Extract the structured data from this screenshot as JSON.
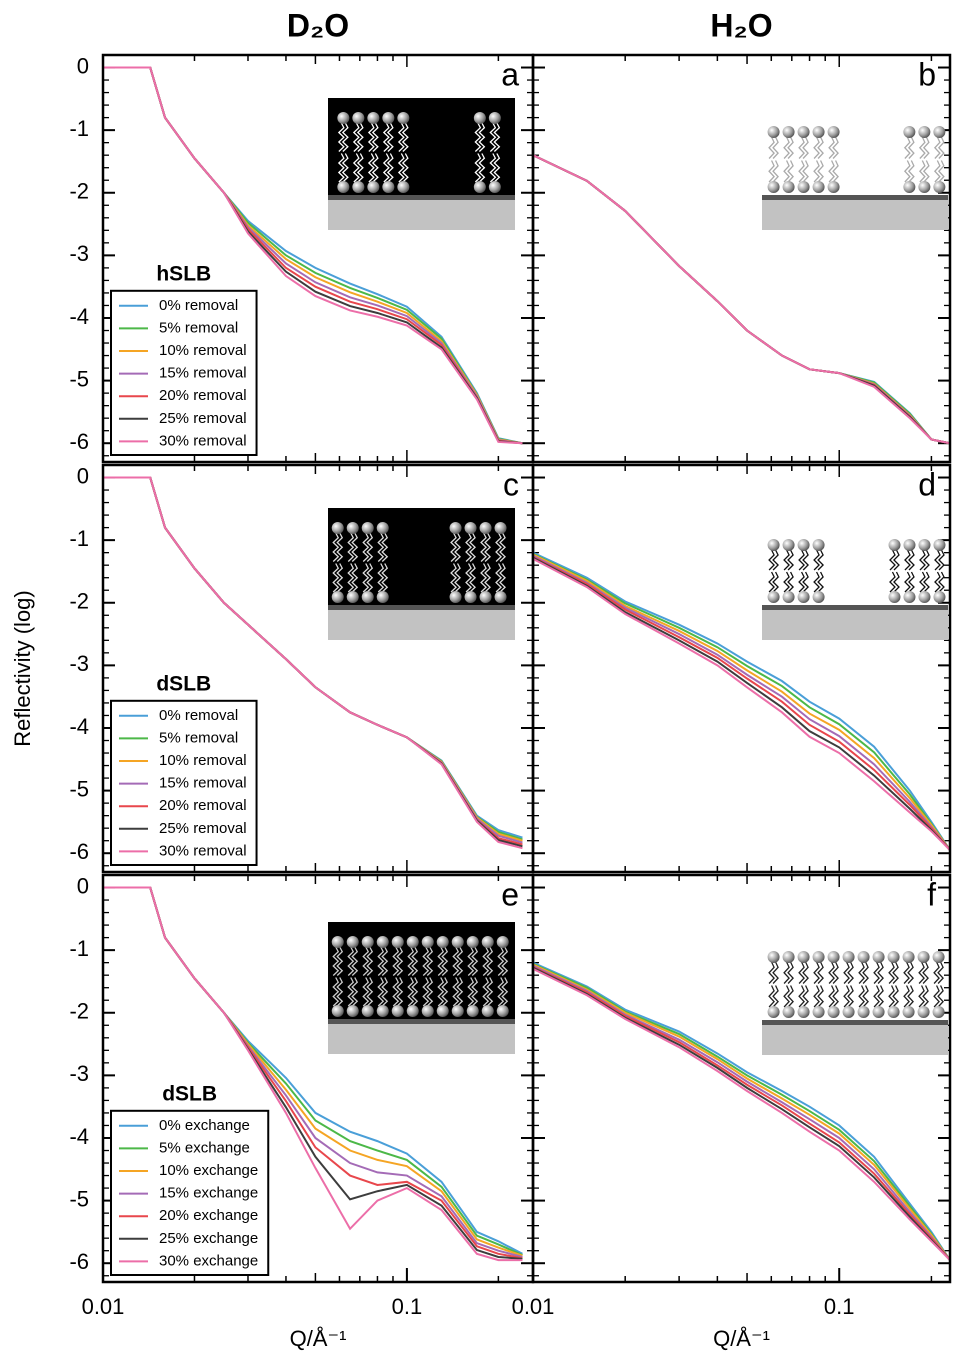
{
  "chart_data": [
    {
      "type": "line",
      "title": "D₂O",
      "panel_label": "a",
      "legend_title": "hSLB",
      "legend": "lower left",
      "xscale": "log",
      "grid": false,
      "xlim": [
        0.01,
        0.26
      ],
      "ylim": [
        -6.3,
        0.2
      ],
      "yticks": [
        0,
        -1,
        -2,
        -3,
        -4,
        -5,
        -6
      ],
      "x": [
        0.01,
        0.0143,
        0.016,
        0.02,
        0.025,
        0.03,
        0.04,
        0.05,
        0.065,
        0.08,
        0.1,
        0.13,
        0.17,
        0.2,
        0.24
      ],
      "series": [
        {
          "name": "0% removal",
          "color": "#4a9fd8",
          "values": [
            0,
            0,
            -0.8,
            -1.45,
            -2.0,
            -2.45,
            -2.93,
            -3.2,
            -3.45,
            -3.62,
            -3.82,
            -4.3,
            -5.2,
            -5.92,
            -6.0
          ]
        },
        {
          "name": "5% removal",
          "color": "#4cb848",
          "values": [
            0,
            0,
            -0.8,
            -1.45,
            -2.0,
            -2.48,
            -3.0,
            -3.28,
            -3.52,
            -3.68,
            -3.87,
            -4.33,
            -5.22,
            -5.93,
            -6.0
          ]
        },
        {
          "name": "10% removal",
          "color": "#f5a524",
          "values": [
            0,
            0,
            -0.8,
            -1.45,
            -2.0,
            -2.52,
            -3.06,
            -3.35,
            -3.59,
            -3.74,
            -3.92,
            -4.37,
            -5.23,
            -5.94,
            -6.0
          ]
        },
        {
          "name": "15% removal",
          "color": "#a46bb6",
          "values": [
            0,
            0,
            -0.8,
            -1.45,
            -2.0,
            -2.55,
            -3.13,
            -3.43,
            -3.67,
            -3.8,
            -3.97,
            -4.4,
            -5.25,
            -5.95,
            -6.0
          ]
        },
        {
          "name": "20% removal",
          "color": "#e8474c",
          "values": [
            0,
            0,
            -0.8,
            -1.45,
            -2.0,
            -2.58,
            -3.2,
            -3.5,
            -3.74,
            -3.86,
            -4.02,
            -4.43,
            -5.27,
            -5.96,
            -6.0
          ]
        },
        {
          "name": "25% removal",
          "color": "#3d3d3d",
          "values": [
            0,
            0,
            -0.8,
            -1.45,
            -2.0,
            -2.62,
            -3.26,
            -3.58,
            -3.81,
            -3.92,
            -4.07,
            -4.47,
            -5.28,
            -5.97,
            -6.0
          ]
        },
        {
          "name": "30% removal",
          "color": "#ec6ea8",
          "values": [
            0,
            0,
            -0.8,
            -1.45,
            -2.0,
            -2.65,
            -3.33,
            -3.65,
            -3.88,
            -3.98,
            -4.12,
            -4.5,
            -5.3,
            -5.98,
            -6.0
          ]
        }
      ]
    },
    {
      "type": "line",
      "title": "H₂O",
      "panel_label": "b",
      "xscale": "log",
      "grid": false,
      "xlim": [
        0.01,
        0.23
      ],
      "ylim": [
        -6.3,
        0.2
      ],
      "x": [
        0.01,
        0.015,
        0.02,
        0.03,
        0.04,
        0.05,
        0.065,
        0.08,
        0.1,
        0.13,
        0.17,
        0.2,
        0.23
      ],
      "series": [
        {
          "color": "#4a9fd8",
          "values": [
            -1.4,
            -1.81,
            -2.29,
            -3.17,
            -3.73,
            -4.2,
            -4.6,
            -4.82,
            -4.88,
            -5.02,
            -5.52,
            -5.94,
            -6.0
          ]
        },
        {
          "color": "#4cb848",
          "values": [
            -1.4,
            -1.81,
            -2.29,
            -3.17,
            -3.73,
            -4.2,
            -4.6,
            -4.82,
            -4.88,
            -5.03,
            -5.53,
            -5.94,
            -6.0
          ]
        },
        {
          "color": "#f5a524",
          "values": [
            -1.4,
            -1.81,
            -2.29,
            -3.17,
            -3.73,
            -4.2,
            -4.6,
            -4.82,
            -4.88,
            -5.05,
            -5.55,
            -5.94,
            -6.0
          ]
        },
        {
          "color": "#a46bb6",
          "values": [
            -1.4,
            -1.81,
            -2.29,
            -3.17,
            -3.73,
            -4.2,
            -4.6,
            -4.82,
            -4.88,
            -5.06,
            -5.56,
            -5.94,
            -6.0
          ]
        },
        {
          "color": "#e8474c",
          "values": [
            -1.4,
            -1.81,
            -2.29,
            -3.17,
            -3.73,
            -4.2,
            -4.6,
            -4.82,
            -4.88,
            -5.07,
            -5.57,
            -5.94,
            -6.0
          ]
        },
        {
          "color": "#3d3d3d",
          "values": [
            -1.4,
            -1.81,
            -2.29,
            -3.17,
            -3.73,
            -4.2,
            -4.6,
            -4.82,
            -4.88,
            -5.08,
            -5.58,
            -5.94,
            -6.0
          ]
        },
        {
          "color": "#ec6ea8",
          "values": [
            -1.4,
            -1.81,
            -2.29,
            -3.17,
            -3.73,
            -4.2,
            -4.6,
            -4.82,
            -4.88,
            -5.1,
            -5.6,
            -5.94,
            -6.0
          ]
        }
      ]
    },
    {
      "type": "line",
      "panel_label": "c",
      "legend_title": "dSLB",
      "legend": "lower left",
      "ylabel": "Reflectivity (log)",
      "xscale": "log",
      "grid": false,
      "xlim": [
        0.01,
        0.26
      ],
      "ylim": [
        -6.3,
        0.2
      ],
      "yticks": [
        0,
        -1,
        -2,
        -3,
        -4,
        -5,
        -6
      ],
      "x": [
        0.01,
        0.0143,
        0.016,
        0.02,
        0.025,
        0.03,
        0.04,
        0.05,
        0.065,
        0.08,
        0.1,
        0.13,
        0.17,
        0.2,
        0.24
      ],
      "series": [
        {
          "name": "0% removal",
          "color": "#4a9fd8",
          "values": [
            0,
            0,
            -0.8,
            -1.45,
            -2.0,
            -2.35,
            -2.9,
            -3.35,
            -3.75,
            -3.95,
            -4.15,
            -4.52,
            -5.4,
            -5.63,
            -5.75
          ]
        },
        {
          "name": "5% removal",
          "color": "#4cb848",
          "values": [
            0,
            0,
            -0.8,
            -1.45,
            -2.0,
            -2.35,
            -2.9,
            -3.35,
            -3.75,
            -3.95,
            -4.15,
            -4.53,
            -5.42,
            -5.66,
            -5.78
          ]
        },
        {
          "name": "10% removal",
          "color": "#f5a524",
          "values": [
            0,
            0,
            -0.8,
            -1.45,
            -2.0,
            -2.35,
            -2.9,
            -3.35,
            -3.75,
            -3.95,
            -4.15,
            -4.54,
            -5.43,
            -5.69,
            -5.8
          ]
        },
        {
          "name": "15% removal",
          "color": "#a46bb6",
          "values": [
            0,
            0,
            -0.8,
            -1.45,
            -2.0,
            -2.35,
            -2.9,
            -3.35,
            -3.75,
            -3.95,
            -4.15,
            -4.55,
            -5.45,
            -5.72,
            -5.83
          ]
        },
        {
          "name": "20% removal",
          "color": "#e8474c",
          "values": [
            0,
            0,
            -0.8,
            -1.45,
            -2.0,
            -2.35,
            -2.9,
            -3.35,
            -3.75,
            -3.95,
            -4.15,
            -4.56,
            -5.47,
            -5.76,
            -5.86
          ]
        },
        {
          "name": "25% removal",
          "color": "#3d3d3d",
          "values": [
            0,
            0,
            -0.8,
            -1.45,
            -2.0,
            -2.35,
            -2.9,
            -3.35,
            -3.75,
            -3.95,
            -4.15,
            -4.57,
            -5.48,
            -5.79,
            -5.89
          ]
        },
        {
          "name": "30% removal",
          "color": "#ec6ea8",
          "values": [
            0,
            0,
            -0.8,
            -1.45,
            -2.0,
            -2.35,
            -2.9,
            -3.35,
            -3.75,
            -3.95,
            -4.15,
            -4.58,
            -5.5,
            -5.82,
            -5.92
          ]
        }
      ]
    },
    {
      "type": "line",
      "panel_label": "d",
      "xscale": "log",
      "grid": false,
      "xlim": [
        0.01,
        0.23
      ],
      "ylim": [
        -6.3,
        0.2
      ],
      "x": [
        0.01,
        0.015,
        0.02,
        0.03,
        0.04,
        0.05,
        0.065,
        0.08,
        0.1,
        0.13,
        0.17,
        0.2,
        0.23
      ],
      "series": [
        {
          "color": "#4a9fd8",
          "values": [
            -1.2,
            -1.6,
            -1.98,
            -2.35,
            -2.65,
            -2.94,
            -3.25,
            -3.58,
            -3.85,
            -4.3,
            -5.0,
            -5.5,
            -5.95
          ]
        },
        {
          "color": "#4cb848",
          "values": [
            -1.22,
            -1.63,
            -2.01,
            -2.4,
            -2.71,
            -3.01,
            -3.33,
            -3.67,
            -3.94,
            -4.39,
            -5.06,
            -5.53,
            -5.95
          ]
        },
        {
          "color": "#f5a524",
          "values": [
            -1.23,
            -1.65,
            -2.05,
            -2.45,
            -2.77,
            -3.08,
            -3.42,
            -3.77,
            -4.03,
            -4.48,
            -5.12,
            -5.55,
            -5.95
          ]
        },
        {
          "color": "#a46bb6",
          "values": [
            -1.25,
            -1.68,
            -2.08,
            -2.5,
            -2.83,
            -3.15,
            -3.5,
            -3.86,
            -4.13,
            -4.58,
            -5.18,
            -5.58,
            -5.95
          ]
        },
        {
          "color": "#e8474c",
          "values": [
            -1.27,
            -1.7,
            -2.11,
            -2.55,
            -2.88,
            -3.21,
            -3.58,
            -3.95,
            -4.22,
            -4.67,
            -5.23,
            -5.6,
            -5.95
          ]
        },
        {
          "color": "#3d3d3d",
          "values": [
            -1.28,
            -1.73,
            -2.15,
            -2.6,
            -2.94,
            -3.28,
            -3.67,
            -4.05,
            -4.31,
            -4.76,
            -5.29,
            -5.63,
            -5.95
          ]
        },
        {
          "color": "#ec6ea8",
          "values": [
            -1.3,
            -1.75,
            -2.18,
            -2.65,
            -3.0,
            -3.35,
            -3.75,
            -4.14,
            -4.4,
            -4.85,
            -5.35,
            -5.65,
            -5.95
          ]
        }
      ]
    },
    {
      "type": "line",
      "panel_label": "e",
      "legend_title": "dSLB",
      "legend": "lower left",
      "xlabel": "Q/Å⁻¹",
      "xscale": "log",
      "grid": false,
      "xlim": [
        0.01,
        0.26
      ],
      "ylim": [
        -6.3,
        0.2
      ],
      "yticks": [
        0,
        -1,
        -2,
        -3,
        -4,
        -5,
        -6
      ],
      "xticks": [
        0.01,
        0.1
      ],
      "x": [
        0.01,
        0.0143,
        0.016,
        0.02,
        0.025,
        0.03,
        0.04,
        0.05,
        0.065,
        0.08,
        0.1,
        0.13,
        0.17,
        0.2,
        0.24
      ],
      "series": [
        {
          "name": "0% exchange",
          "color": "#4a9fd8",
          "values": [
            0,
            0,
            -0.8,
            -1.45,
            -2.0,
            -2.45,
            -3.04,
            -3.6,
            -3.9,
            -4.05,
            -4.25,
            -4.7,
            -5.5,
            -5.65,
            -5.85
          ]
        },
        {
          "name": "5% exchange",
          "color": "#4cb848",
          "values": [
            0,
            0,
            -0.8,
            -1.45,
            -2.0,
            -2.48,
            -3.13,
            -3.72,
            -4.05,
            -4.2,
            -4.35,
            -4.78,
            -5.56,
            -5.7,
            -5.87
          ]
        },
        {
          "name": "10% exchange",
          "color": "#f5a524",
          "values": [
            0,
            0,
            -0.8,
            -1.45,
            -2.0,
            -2.5,
            -3.23,
            -3.85,
            -4.2,
            -4.35,
            -4.45,
            -4.85,
            -5.62,
            -5.75,
            -5.88
          ]
        },
        {
          "name": "15% exchange",
          "color": "#a46bb6",
          "values": [
            0,
            0,
            -0.8,
            -1.45,
            -2.0,
            -2.53,
            -3.32,
            -4.0,
            -4.4,
            -4.55,
            -4.6,
            -4.93,
            -5.68,
            -5.8,
            -5.9
          ]
        },
        {
          "name": "20% exchange",
          "color": "#e8474c",
          "values": [
            0,
            0,
            -0.8,
            -1.45,
            -2.0,
            -2.55,
            -3.41,
            -4.15,
            -4.6,
            -4.75,
            -4.7,
            -5.0,
            -5.73,
            -5.85,
            -5.92
          ]
        },
        {
          "name": "25% exchange",
          "color": "#3d3d3d",
          "values": [
            0,
            0,
            -0.8,
            -1.45,
            -2.0,
            -2.58,
            -3.51,
            -4.3,
            -4.98,
            -4.85,
            -4.75,
            -5.08,
            -5.79,
            -5.9,
            -5.93
          ]
        },
        {
          "name": "30% exchange",
          "color": "#ec6ea8",
          "values": [
            0,
            0,
            -0.8,
            -1.45,
            -2.0,
            -2.6,
            -3.6,
            -4.48,
            -5.45,
            -5.0,
            -4.8,
            -5.15,
            -5.85,
            -5.95,
            -5.95
          ]
        }
      ]
    },
    {
      "type": "line",
      "panel_label": "f",
      "xlabel": "Q/Å⁻¹",
      "xscale": "log",
      "grid": false,
      "xlim": [
        0.01,
        0.23
      ],
      "ylim": [
        -6.3,
        0.2
      ],
      "xticks": [
        0.01,
        0.1
      ],
      "x": [
        0.01,
        0.015,
        0.02,
        0.03,
        0.04,
        0.05,
        0.065,
        0.08,
        0.1,
        0.13,
        0.17,
        0.2,
        0.23
      ],
      "series": [
        {
          "color": "#4a9fd8",
          "values": [
            -1.2,
            -1.58,
            -1.95,
            -2.3,
            -2.65,
            -2.95,
            -3.25,
            -3.5,
            -3.8,
            -4.3,
            -5.05,
            -5.5,
            -5.95
          ]
        },
        {
          "color": "#4cb848",
          "values": [
            -1.22,
            -1.6,
            -1.98,
            -2.34,
            -2.7,
            -3.0,
            -3.31,
            -3.57,
            -3.87,
            -4.37,
            -5.09,
            -5.53,
            -5.95
          ]
        },
        {
          "color": "#f5a524",
          "values": [
            -1.23,
            -1.63,
            -2.0,
            -2.38,
            -2.74,
            -3.05,
            -3.37,
            -3.63,
            -3.93,
            -4.43,
            -5.13,
            -5.55,
            -5.95
          ]
        },
        {
          "color": "#a46bb6",
          "values": [
            -1.25,
            -1.65,
            -2.03,
            -2.43,
            -2.79,
            -3.1,
            -3.43,
            -3.7,
            -4.0,
            -4.5,
            -5.18,
            -5.58,
            -5.95
          ]
        },
        {
          "color": "#e8474c",
          "values": [
            -1.27,
            -1.67,
            -2.05,
            -2.47,
            -2.84,
            -3.15,
            -3.48,
            -3.77,
            -4.07,
            -4.57,
            -5.22,
            -5.6,
            -5.95
          ]
        },
        {
          "color": "#3d3d3d",
          "values": [
            -1.28,
            -1.7,
            -2.08,
            -2.51,
            -2.88,
            -3.2,
            -3.54,
            -3.83,
            -4.13,
            -4.63,
            -5.26,
            -5.63,
            -5.95
          ]
        },
        {
          "color": "#ec6ea8",
          "values": [
            -1.3,
            -1.72,
            -2.1,
            -2.55,
            -2.93,
            -3.25,
            -3.6,
            -3.9,
            -4.2,
            -4.7,
            -5.3,
            -5.65,
            -5.95
          ]
        }
      ]
    }
  ]
}
